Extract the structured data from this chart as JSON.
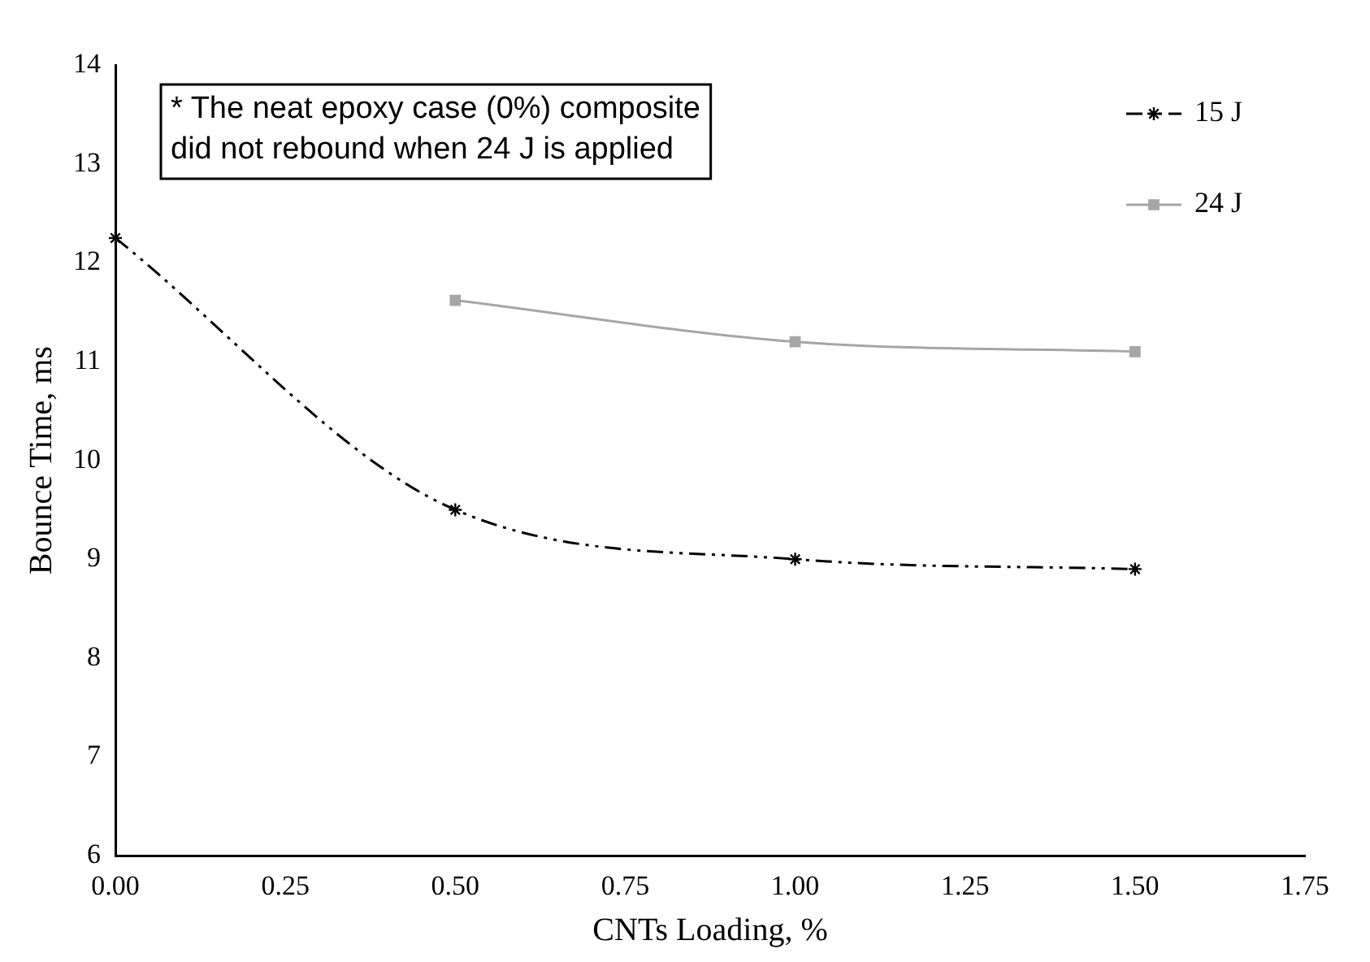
{
  "chart_data": {
    "type": "line",
    "xlabel": "CNTs Loading, %",
    "ylabel": "Bounce Time, ms",
    "annotations": [
      "* The neat epoxy case (0%) composite\ndid not rebound when 24 J is applied"
    ],
    "series": [
      {
        "name": "15 J",
        "color": "#000000",
        "x": [
          0,
          0.5,
          1.0,
          1.5
        ],
        "values": [
          12.25,
          9.5,
          9.0,
          8.9
        ],
        "marker": "cross",
        "line_style": "dashed"
      },
      {
        "name": "24 J",
        "color": "#a6a6a6",
        "x": [
          0.5,
          1.0,
          1.5
        ],
        "values": [
          11.62,
          11.2,
          11.1
        ],
        "marker": "square",
        "line_style": "solid"
      }
    ],
    "xlim": [
      0,
      1.75
    ],
    "xticks": [
      {
        "value": 0,
        "label": "0.00"
      },
      {
        "value": 0.25,
        "label": "0.25"
      },
      {
        "value": 0.5,
        "label": "0.50"
      },
      {
        "value": 0.75,
        "label": "0.75"
      },
      {
        "value": 1,
        "label": "1.00"
      },
      {
        "value": 1.25,
        "label": "1.25"
      },
      {
        "value": 1.5,
        "label": "1.50"
      },
      {
        "value": 1.75,
        "label": "1.75"
      }
    ],
    "ylim": [
      6,
      14
    ],
    "yticks": [
      6,
      7,
      8,
      9,
      10,
      11,
      12,
      13,
      14
    ],
    "grid": false,
    "legend": "top right"
  }
}
